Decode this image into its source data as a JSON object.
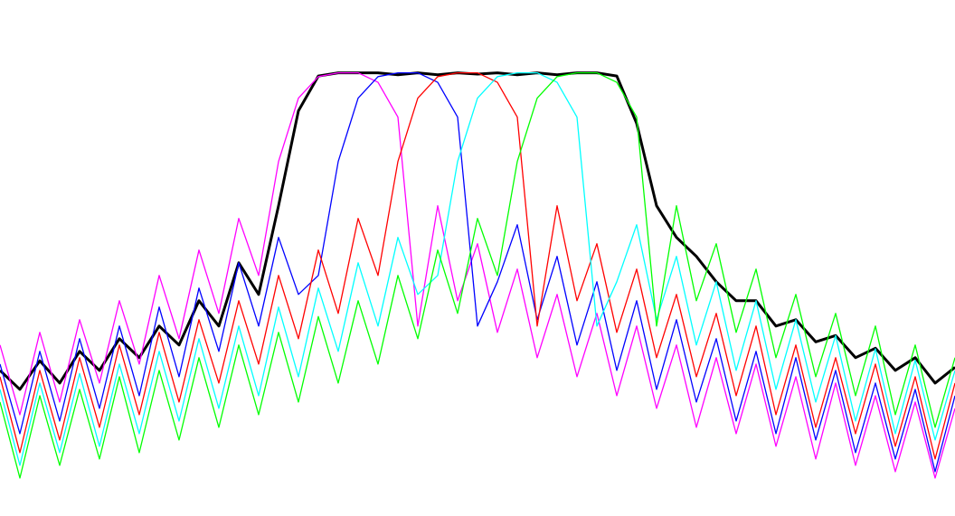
{
  "chart_data": {
    "type": "line",
    "x": [
      0,
      22,
      44,
      66,
      88,
      110,
      132,
      154,
      176,
      198,
      220,
      242,
      264,
      286,
      308,
      330,
      352,
      374,
      396,
      418,
      440,
      462,
      484,
      506,
      528,
      550,
      572,
      594,
      616,
      638,
      660,
      682,
      704,
      726,
      748,
      770,
      792,
      814,
      836,
      858,
      880,
      902,
      924,
      946,
      968,
      990,
      1012,
      1034,
      1056
    ],
    "xlim": [
      0,
      1056
    ],
    "ylim": [
      -70,
      11.5
    ],
    "series": [
      {
        "color": "#000000",
        "values": [
          -47,
          -50,
          -45.5,
          -49,
          -44,
          -47,
          -42,
          -45,
          -40,
          -43,
          -36,
          -40,
          -30,
          -35,
          -21,
          -6,
          -0.5,
          0,
          0,
          0,
          -0.3,
          0,
          -0.3,
          0,
          -0.2,
          0,
          -0.3,
          0,
          -0.3,
          0,
          0,
          -0.5,
          -8,
          -21,
          -26,
          -29,
          -33,
          -36,
          -36,
          -40,
          -39,
          -42.5,
          -41.5,
          -45,
          -43.5,
          -47,
          -45,
          -49,
          -46.5
        ]
      },
      {
        "color": "#ff00ff",
        "values": [
          -43,
          -54,
          -41,
          -52,
          -39,
          -49,
          -36,
          -46,
          -32,
          -42,
          -28,
          -38,
          -23,
          -32,
          -14,
          -4,
          -0.6,
          0,
          0,
          -1.5,
          -7,
          -40,
          -21,
          -36,
          -27,
          -41,
          -31,
          -45,
          -35,
          -48,
          -38,
          -51,
          -40,
          -53,
          -43,
          -56,
          -45,
          -57,
          -46,
          -59,
          -48,
          -61,
          -49,
          -62,
          -51,
          -63,
          -52,
          -64,
          -53
        ]
      },
      {
        "color": "#0000ff",
        "values": [
          -46,
          -57,
          -44,
          -55,
          -42,
          -53,
          -40,
          -51,
          -37,
          -48,
          -34,
          -44,
          -30,
          -40,
          -26,
          -35,
          -32,
          -14,
          -4,
          -0.6,
          0,
          0,
          -1.5,
          -7,
          -40,
          -33,
          -24,
          -39,
          -29,
          -43,
          -33,
          -47,
          -36,
          -50,
          -39,
          -52,
          -42,
          -55,
          -44,
          -57,
          -45,
          -58,
          -47,
          -60,
          -49,
          -61,
          -50,
          -63,
          -51
        ]
      },
      {
        "color": "#ff0000",
        "values": [
          -48,
          -60,
          -47,
          -58,
          -45,
          -56,
          -43,
          -54,
          -41,
          -52,
          -39,
          -49,
          -36,
          -46,
          -32,
          -42,
          -28,
          -38,
          -23,
          -32,
          -14,
          -4,
          -0.6,
          0,
          0,
          -1.5,
          -7,
          -40,
          -21,
          -36,
          -27,
          -41,
          -31,
          -45,
          -35,
          -48,
          -38,
          -51,
          -40,
          -54,
          -43,
          -56,
          -45,
          -57,
          -46,
          -59,
          -48,
          -61,
          -49
        ]
      },
      {
        "color": "#00ffff",
        "values": [
          -50,
          -62,
          -49,
          -60,
          -47.5,
          -59,
          -46,
          -57,
          -44,
          -55,
          -42,
          -53,
          -40,
          -51,
          -37,
          -48,
          -34,
          -44,
          -30,
          -40,
          -26,
          -35,
          -32,
          -14,
          -4,
          -0.6,
          0,
          0,
          -1.5,
          -7,
          -40,
          -33,
          -24,
          -39,
          -29,
          -43,
          -33,
          -47,
          -36,
          -50,
          -39,
          -52,
          -41.5,
          -55,
          -43.6,
          -57,
          -45.4,
          -58,
          -47
        ]
      },
      {
        "color": "#00ff00",
        "values": [
          -52,
          -64,
          -51,
          -62,
          -50,
          -61,
          -48,
          -60,
          -47,
          -58,
          -45,
          -56,
          -43,
          -54,
          -41,
          -52,
          -38.5,
          -49,
          -36,
          -46,
          -32,
          -42,
          -28,
          -38,
          -23,
          -32,
          -14,
          -4,
          -0.6,
          0,
          0,
          -1.5,
          -7,
          -40,
          -21,
          -36,
          -27,
          -41,
          -31,
          -45,
          -35,
          -48,
          -38,
          -51,
          -40,
          -54,
          -43,
          -56,
          -45
        ]
      }
    ]
  }
}
